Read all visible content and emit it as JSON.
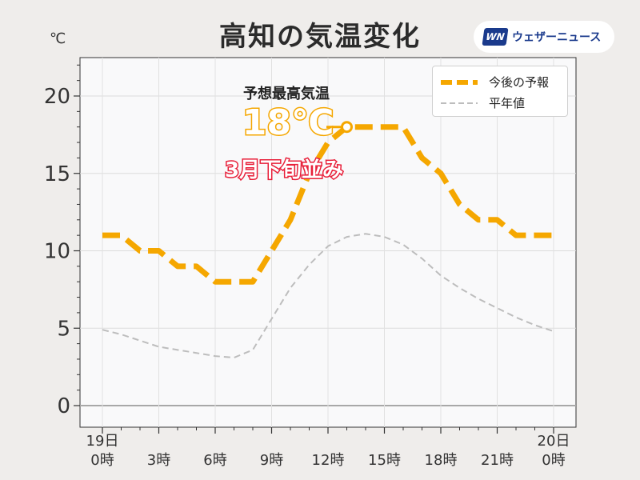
{
  "header": {
    "title": "高知の気温変化",
    "unit": "℃"
  },
  "brand": {
    "logo_text": "WN",
    "name": "ウェザーニュース"
  },
  "legend": {
    "forecast_label": "今後の予報",
    "normal_label": "平年値"
  },
  "annotation": {
    "label": "予想最高気温",
    "value": "18℃",
    "comment": "3月下旬並み"
  },
  "colors": {
    "forecast": "#f5a700",
    "normal": "#bdbdbd",
    "comment": "#e8203a",
    "plot_bg": "#f9f9fa"
  },
  "chart_data": {
    "type": "line",
    "title": "高知の気温変化",
    "ylabel": "℃",
    "ylim": [
      0,
      22
    ],
    "yticks": [
      0,
      5,
      10,
      15,
      20
    ],
    "xlim": [
      0,
      24
    ],
    "xticks": [
      {
        "x": 0,
        "label": "19日\n0時"
      },
      {
        "x": 3,
        "label": "3時"
      },
      {
        "x": 6,
        "label": "6時"
      },
      {
        "x": 9,
        "label": "9時"
      },
      {
        "x": 12,
        "label": "12時"
      },
      {
        "x": 15,
        "label": "15時"
      },
      {
        "x": 18,
        "label": "18時"
      },
      {
        "x": 21,
        "label": "21時"
      },
      {
        "x": 24,
        "label": "20日\n0時"
      }
    ],
    "grid": true,
    "legend_position": "top-right",
    "series": [
      {
        "name": "今後の予報",
        "style": "dashed-thick",
        "x": [
          0,
          1,
          2,
          3,
          4,
          5,
          6,
          7,
          8,
          9,
          10,
          11,
          12,
          13,
          14,
          15,
          16,
          17,
          18,
          19,
          20,
          21,
          22,
          23,
          24
        ],
        "y": [
          11,
          11,
          10,
          10,
          9,
          9,
          8,
          8,
          8,
          10,
          12,
          15,
          17,
          18,
          18,
          18,
          18,
          16,
          15,
          13,
          12,
          12,
          11,
          11,
          11
        ]
      },
      {
        "name": "平年値",
        "style": "dashed-thin",
        "x": [
          0,
          1,
          2,
          3,
          4,
          5,
          6,
          7,
          8,
          9,
          10,
          11,
          12,
          13,
          14,
          15,
          16,
          17,
          18,
          19,
          20,
          21,
          22,
          23,
          24
        ],
        "y": [
          4.9,
          4.6,
          4.2,
          3.8,
          3.6,
          3.4,
          3.2,
          3.1,
          3.6,
          5.6,
          7.6,
          9.1,
          10.3,
          10.9,
          11.1,
          10.9,
          10.4,
          9.5,
          8.4,
          7.6,
          6.9,
          6.3,
          5.7,
          5.2,
          4.8
        ]
      }
    ],
    "max_marker": {
      "x": 13,
      "y": 18
    }
  }
}
